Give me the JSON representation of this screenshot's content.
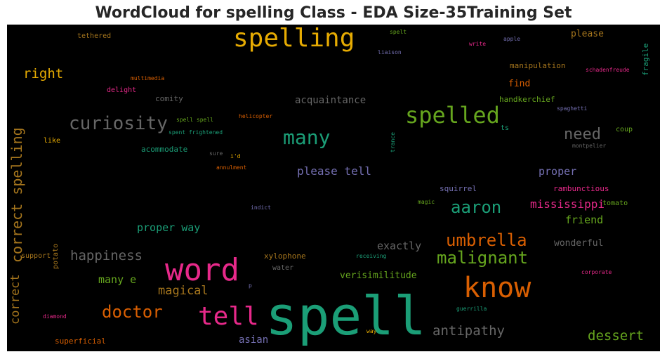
{
  "chart_data": {
    "type": "wordcloud",
    "title": "WordCloud for spelling Class - EDA Size-35Training Set",
    "background": "#000000",
    "words": [
      {
        "text": "spell",
        "color": "#1b9e77"
      },
      {
        "text": "word",
        "color": "#e7298a"
      },
      {
        "text": "know",
        "color": "#d95f02"
      },
      {
        "text": "spelling",
        "color": "#e6ab02"
      },
      {
        "text": "tell",
        "color": "#e7298a"
      },
      {
        "text": "spelled",
        "color": "#66a61e"
      },
      {
        "text": "curiosity",
        "color": "#666666"
      },
      {
        "text": "many",
        "color": "#1b9e77"
      },
      {
        "text": "correct spelling",
        "color": "#a6761d"
      },
      {
        "text": "doctor",
        "color": "#d95f02"
      },
      {
        "text": "malignant",
        "color": "#66a61e"
      },
      {
        "text": "umbrella",
        "color": "#d95f02"
      },
      {
        "text": "aaron",
        "color": "#1b9e77"
      },
      {
        "text": "happiness",
        "color": "#666666"
      },
      {
        "text": "need",
        "color": "#666666"
      },
      {
        "text": "correct",
        "color": "#a6761d"
      },
      {
        "text": "antipathy",
        "color": "#666666"
      },
      {
        "text": "dessert",
        "color": "#66a61e"
      },
      {
        "text": "right",
        "color": "#e6ab02"
      },
      {
        "text": "please tell",
        "color": "#7570b3"
      },
      {
        "text": "mississippi",
        "color": "#e7298a"
      },
      {
        "text": "magical",
        "color": "#a6761d"
      },
      {
        "text": "proper way",
        "color": "#1b9e77"
      },
      {
        "text": "exactly",
        "color": "#666666"
      },
      {
        "text": "many e",
        "color": "#66a61e"
      },
      {
        "text": "proper",
        "color": "#7570b3"
      },
      {
        "text": "friend",
        "color": "#66a61e"
      },
      {
        "text": "acquaintance",
        "color": "#666666"
      },
      {
        "text": "asian",
        "color": "#7570b3"
      },
      {
        "text": "superficial",
        "color": "#d95f02"
      },
      {
        "text": "verisimilitude",
        "color": "#66a61e"
      },
      {
        "text": "wonderful",
        "color": "#666666"
      },
      {
        "text": "please",
        "color": "#a6761d"
      },
      {
        "text": "find",
        "color": "#d95f02"
      },
      {
        "text": "handkerchief",
        "color": "#66a61e"
      },
      {
        "text": "manipulation",
        "color": "#a6761d"
      },
      {
        "text": "comity",
        "color": "#666666"
      },
      {
        "text": "acommodate",
        "color": "#1b9e77"
      },
      {
        "text": "squirrel",
        "color": "#7570b3"
      },
      {
        "text": "rambunctious",
        "color": "#e7298a"
      },
      {
        "text": "xylophone",
        "color": "#a6761d"
      },
      {
        "text": "tethered",
        "color": "#a6761d"
      },
      {
        "text": "fragile",
        "color": "#1b9e77"
      },
      {
        "text": "coup",
        "color": "#66a61e"
      },
      {
        "text": "like",
        "color": "#e6ab02"
      },
      {
        "text": "potato",
        "color": "#a6761d"
      },
      {
        "text": "tomato",
        "color": "#66a61e"
      },
      {
        "text": "water",
        "color": "#666666"
      },
      {
        "text": "delight",
        "color": "#e7298a"
      },
      {
        "text": "ts",
        "color": "#1b9e77"
      },
      {
        "text": "support",
        "color": "#a6761d"
      },
      {
        "text": "spell spell",
        "color": "#66a61e"
      },
      {
        "text": "helicopter",
        "color": "#d95f02"
      },
      {
        "text": "spent frightened",
        "color": "#1b9e77"
      },
      {
        "text": "multimedia",
        "color": "#d95f02"
      },
      {
        "text": "spelt",
        "color": "#66a61e"
      },
      {
        "text": "liaison",
        "color": "#7570b3"
      },
      {
        "text": "write",
        "color": "#e7298a"
      },
      {
        "text": "apple",
        "color": "#7570b3"
      },
      {
        "text": "schadenfreude",
        "color": "#e7298a"
      },
      {
        "text": "spaghetti",
        "color": "#7570b3"
      },
      {
        "text": "montpelier",
        "color": "#666666"
      },
      {
        "text": "sure",
        "color": "#666666"
      },
      {
        "text": "i'd",
        "color": "#e6ab02"
      },
      {
        "text": "annulment",
        "color": "#d95f02"
      },
      {
        "text": "trance",
        "color": "#1b9e77"
      },
      {
        "text": "indict",
        "color": "#7570b3"
      },
      {
        "text": "magic",
        "color": "#66a61e"
      },
      {
        "text": "receiving",
        "color": "#1b9e77"
      },
      {
        "text": "corporate",
        "color": "#e7298a"
      },
      {
        "text": "p",
        "color": "#7570b3"
      },
      {
        "text": "diamond",
        "color": "#e7298a"
      },
      {
        "text": "guerrilla",
        "color": "#1b9e77"
      },
      {
        "text": "way",
        "color": "#e6ab02"
      }
    ]
  }
}
